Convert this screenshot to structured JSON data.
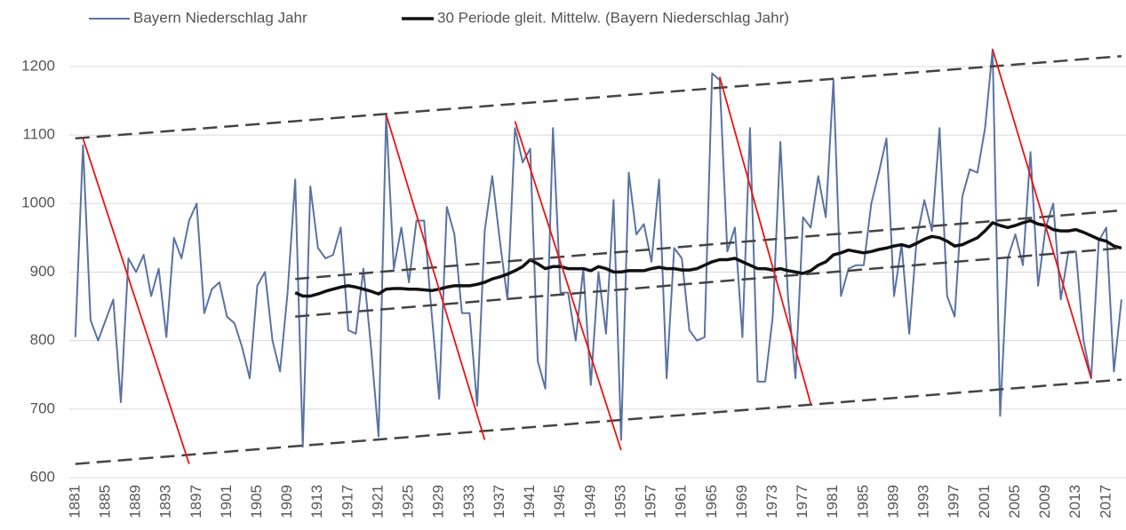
{
  "chart_data": {
    "type": "line",
    "x": [
      1881,
      1882,
      1883,
      1884,
      1885,
      1886,
      1887,
      1888,
      1889,
      1890,
      1891,
      1892,
      1893,
      1894,
      1895,
      1896,
      1897,
      1898,
      1899,
      1900,
      1901,
      1902,
      1903,
      1904,
      1905,
      1906,
      1907,
      1908,
      1909,
      1910,
      1911,
      1912,
      1913,
      1914,
      1915,
      1916,
      1917,
      1918,
      1919,
      1920,
      1921,
      1922,
      1923,
      1924,
      1925,
      1926,
      1927,
      1928,
      1929,
      1930,
      1931,
      1932,
      1933,
      1934,
      1935,
      1936,
      1937,
      1938,
      1939,
      1940,
      1941,
      1942,
      1943,
      1944,
      1945,
      1946,
      1947,
      1948,
      1949,
      1950,
      1951,
      1952,
      1953,
      1954,
      1955,
      1956,
      1957,
      1958,
      1959,
      1960,
      1961,
      1962,
      1963,
      1964,
      1965,
      1966,
      1967,
      1968,
      1969,
      1970,
      1971,
      1972,
      1973,
      1974,
      1975,
      1976,
      1977,
      1978,
      1979,
      1980,
      1981,
      1982,
      1983,
      1984,
      1985,
      1986,
      1987,
      1988,
      1989,
      1990,
      1991,
      1992,
      1993,
      1994,
      1995,
      1996,
      1997,
      1998,
      1999,
      2000,
      2001,
      2002,
      2003,
      2004,
      2005,
      2006,
      2007,
      2008,
      2009,
      2010,
      2011,
      2012,
      2013,
      2014,
      2015,
      2016,
      2017,
      2018,
      2019
    ],
    "series": [
      {
        "name": "Bayern Niederschlag Jahr",
        "color": "#5a73a3",
        "width": 2,
        "values": [
          805,
          1085,
          830,
          800,
          830,
          860,
          710,
          920,
          900,
          925,
          865,
          905,
          805,
          950,
          920,
          975,
          1000,
          840,
          875,
          885,
          835,
          825,
          790,
          745,
          880,
          900,
          800,
          755,
          870,
          1035,
          645,
          1025,
          935,
          920,
          925,
          965,
          815,
          810,
          905,
          790,
          660,
          1130,
          905,
          965,
          885,
          975,
          975,
          840,
          715,
          995,
          955,
          840,
          840,
          705,
          960,
          1040,
          945,
          860,
          1110,
          1060,
          1080,
          770,
          730,
          1110,
          870,
          870,
          800,
          905,
          735,
          900,
          810,
          1005,
          655,
          1045,
          955,
          970,
          915,
          1035,
          745,
          935,
          920,
          815,
          800,
          805,
          1190,
          1180,
          930,
          965,
          805,
          1110,
          740,
          740,
          835,
          1090,
          865,
          745,
          980,
          965,
          1040,
          980,
          1180,
          865,
          905,
          910,
          910,
          1000,
          1045,
          1095,
          865,
          940,
          810,
          950,
          1005,
          960,
          1110,
          865,
          835,
          1010,
          1050,
          1045,
          1110,
          1225,
          690,
          920,
          955,
          910,
          1075,
          880,
          965,
          1000,
          860,
          930,
          930,
          800,
          745,
          945,
          965,
          755,
          860
        ]
      },
      {
        "name": "30 Periode gleit. Mittelw. (Bayern Niederschlag Jahr)",
        "color": "#111111",
        "width": 3.5,
        "values": [
          null,
          null,
          null,
          null,
          null,
          null,
          null,
          null,
          null,
          null,
          null,
          null,
          null,
          null,
          null,
          null,
          null,
          null,
          null,
          null,
          null,
          null,
          null,
          null,
          null,
          null,
          null,
          null,
          null,
          870,
          865,
          865,
          868,
          872,
          875,
          878,
          880,
          878,
          875,
          872,
          868,
          875,
          876,
          876,
          875,
          875,
          874,
          873,
          875,
          878,
          880,
          880,
          880,
          882,
          885,
          890,
          893,
          897,
          902,
          908,
          918,
          912,
          905,
          908,
          908,
          905,
          905,
          905,
          902,
          908,
          905,
          900,
          900,
          902,
          902,
          902,
          905,
          907,
          905,
          905,
          903,
          903,
          905,
          910,
          915,
          918,
          918,
          920,
          915,
          910,
          905,
          905,
          903,
          905,
          902,
          900,
          898,
          902,
          910,
          915,
          925,
          928,
          932,
          930,
          928,
          930,
          933,
          935,
          938,
          940,
          937,
          942,
          948,
          952,
          950,
          945,
          938,
          940,
          945,
          950,
          960,
          972,
          968,
          965,
          968,
          972,
          975,
          970,
          968,
          962,
          960,
          960,
          962,
          958,
          953,
          948,
          945,
          938,
          935
        ]
      }
    ],
    "annotation_lines": [
      {
        "color": "#444444",
        "dashed": true,
        "x": [
          1881,
          2019
        ],
        "y": [
          1095,
          1215
        ]
      },
      {
        "color": "#444444",
        "dashed": true,
        "x": [
          1881,
          2019
        ],
        "y": [
          620,
          743
        ]
      },
      {
        "color": "#444444",
        "dashed": true,
        "x": [
          1910,
          2019
        ],
        "y": [
          890,
          990
        ]
      },
      {
        "color": "#444444",
        "dashed": true,
        "x": [
          1910,
          2019
        ],
        "y": [
          835,
          935
        ]
      },
      {
        "color": "#ee1111",
        "dashed": false,
        "x": [
          1882,
          1896
        ],
        "y": [
          1095,
          620
        ]
      },
      {
        "color": "#ee1111",
        "dashed": false,
        "x": [
          1922,
          1935
        ],
        "y": [
          1130,
          655
        ]
      },
      {
        "color": "#ee1111",
        "dashed": false,
        "x": [
          1939,
          1953
        ],
        "y": [
          1120,
          640
        ]
      },
      {
        "color": "#ee1111",
        "dashed": false,
        "x": [
          1966,
          1978
        ],
        "y": [
          1185,
          708
        ]
      },
      {
        "color": "#ee1111",
        "dashed": false,
        "x": [
          2002,
          2015
        ],
        "y": [
          1225,
          745
        ]
      }
    ],
    "xlim": [
      1880.2,
      2019.6
    ],
    "xticks": [
      1881,
      1885,
      1889,
      1893,
      1897,
      1901,
      1905,
      1909,
      1913,
      1917,
      1921,
      1925,
      1929,
      1933,
      1937,
      1941,
      1945,
      1949,
      1953,
      1957,
      1961,
      1965,
      1969,
      1973,
      1977,
      1981,
      1985,
      1989,
      1993,
      1997,
      2001,
      2005,
      2009,
      2013,
      2017
    ],
    "ylim": [
      600,
      1240
    ],
    "yticks": [
      600,
      700,
      800,
      900,
      1000,
      1100,
      1200
    ],
    "grid": true,
    "legend": "top"
  }
}
